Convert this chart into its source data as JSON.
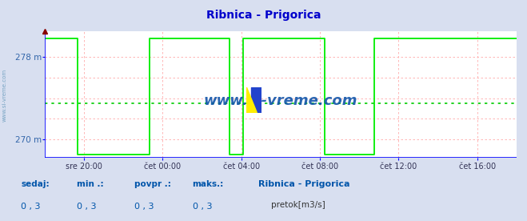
{
  "title": "Ribnica - Prigorica",
  "title_color": "#0000cc",
  "title_fontsize": 10,
  "bg_color": "#d8dff0",
  "plot_bg_color": "#ffffff",
  "ylim": [
    268.2,
    280.5
  ],
  "xlim": [
    0,
    288
  ],
  "xtick_positions": [
    24,
    72,
    120,
    168,
    216,
    264
  ],
  "xtick_labels": [
    "sre 20:00",
    "čet 00:00",
    "čet 04:00",
    "čet 08:00",
    "čet 12:00",
    "čet 16:00"
  ],
  "grid_color": "#ffaaaa",
  "axis_color": "#0000ff",
  "line_color": "#00ee00",
  "avg_line_y": 273.5,
  "avg_line_color": "#00cc00",
  "watermark": "www.si-vreme.com",
  "watermark_color": "#1155aa",
  "sidebar_text": "www.si-vreme.com",
  "sidebar_color": "#6699bb",
  "flow_x": [
    0,
    20,
    20,
    64,
    64,
    113,
    113,
    121,
    121,
    171,
    171,
    201,
    201,
    288
  ],
  "flow_y": [
    279.8,
    279.8,
    268.5,
    268.5,
    279.8,
    279.8,
    268.5,
    268.5,
    279.8,
    279.8,
    268.5,
    268.5,
    279.8,
    279.8
  ],
  "figsize": [
    6.59,
    2.76
  ],
  "dpi": 100,
  "legend_keys": [
    "sedaj:",
    "min .:",
    "povpr .:",
    "maks.:"
  ],
  "legend_vals": [
    "0 , 3",
    "0 , 3",
    "0 , 3",
    "0 , 3"
  ],
  "legend_color": "#0055aa",
  "legend_station": "Ribnica - Prigorica",
  "legend_series": "pretok[m3/s]",
  "legend_series_color": "#00cc00"
}
